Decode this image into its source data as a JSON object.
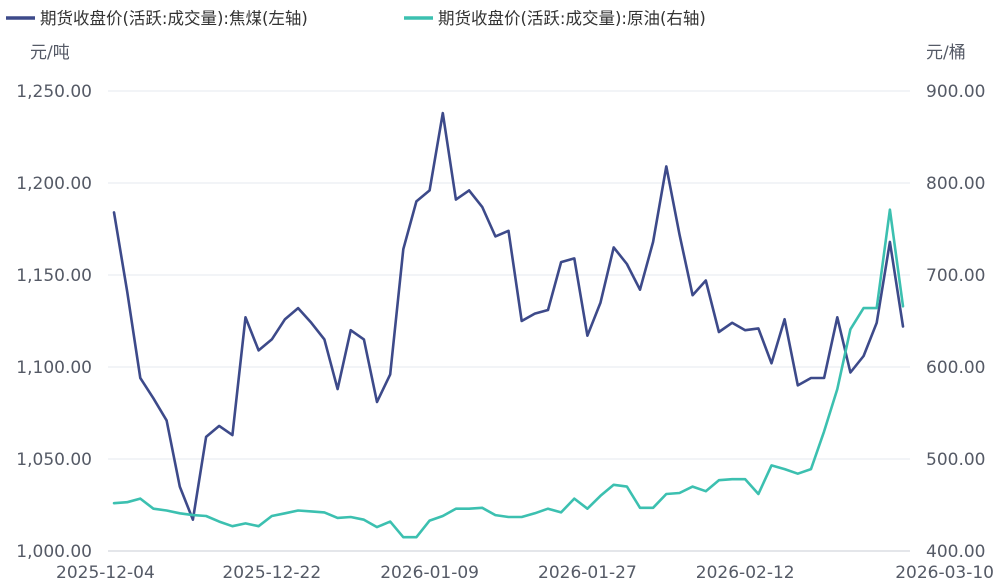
{
  "legend": [
    {
      "label": "期货收盘价(活跃:成交量):焦煤(左轴)",
      "color": "#3d4a8a"
    },
    {
      "label": "期货收盘价(活跃:成交量):原油(右轴)",
      "color": "#3cc0b0"
    }
  ],
  "chart_data": {
    "type": "line",
    "x_ticks": [
      "2025-12-04",
      "2025-12-22",
      "2026-01-09",
      "2026-01-27",
      "2026-02-12",
      "2026-03-10"
    ],
    "left_axis": {
      "unit": "元/吨",
      "ylim": [
        1000,
        1250
      ],
      "ticks": [
        "1,250.00",
        "1,200.00",
        "1,150.00",
        "1,100.00",
        "1,050.00",
        "1,000.00"
      ],
      "tick_values": [
        1250,
        1200,
        1150,
        1100,
        1050,
        1000
      ]
    },
    "right_axis": {
      "unit": "元/桶",
      "ylim": [
        400,
        900
      ],
      "ticks": [
        "900.00",
        "800.00",
        "700.00",
        "600.00",
        "500.00",
        "400.00"
      ],
      "tick_values": [
        900,
        800,
        700,
        600,
        500,
        400
      ]
    },
    "grid": true,
    "legend_position": "top",
    "series": [
      {
        "name": "期货收盘价(活跃:成交量):焦煤(左轴)",
        "axis": "left",
        "color": "#3d4a8a",
        "values": [
          1184,
          1141,
          1094,
          1083,
          1071,
          1035,
          1017,
          1062,
          1068,
          1063,
          1127,
          1109,
          1115,
          1126,
          1132,
          1124,
          1115,
          1088,
          1120,
          1115,
          1081,
          1096,
          1164,
          1190,
          1196,
          1238,
          1191,
          1196,
          1187,
          1171,
          1174,
          1125,
          1129,
          1131,
          1157,
          1159,
          1117,
          1135,
          1165,
          1156,
          1142,
          1168,
          1209,
          1172,
          1139,
          1147,
          1119,
          1124,
          1120,
          1121,
          1102,
          1126,
          1090,
          1094,
          1094,
          1127,
          1097,
          1106,
          1124,
          1168,
          1122
        ]
      },
      {
        "name": "期货收盘价(活跃:成交量):原油(右轴)",
        "axis": "right",
        "color": "#3cc0b0",
        "values": [
          452,
          453,
          457,
          446,
          444,
          441,
          439,
          438,
          432,
          427,
          430,
          427,
          438,
          441,
          444,
          443,
          442,
          436,
          437,
          434,
          426,
          432,
          415,
          415,
          433,
          438,
          446,
          446,
          447,
          439,
          437,
          437,
          441,
          446,
          442,
          457,
          446,
          460,
          472,
          470,
          447,
          447,
          462,
          463,
          470,
          465,
          477,
          478,
          478,
          462,
          493,
          489,
          484,
          489,
          530,
          576,
          641,
          664,
          664,
          771,
          666
        ]
      }
    ]
  }
}
